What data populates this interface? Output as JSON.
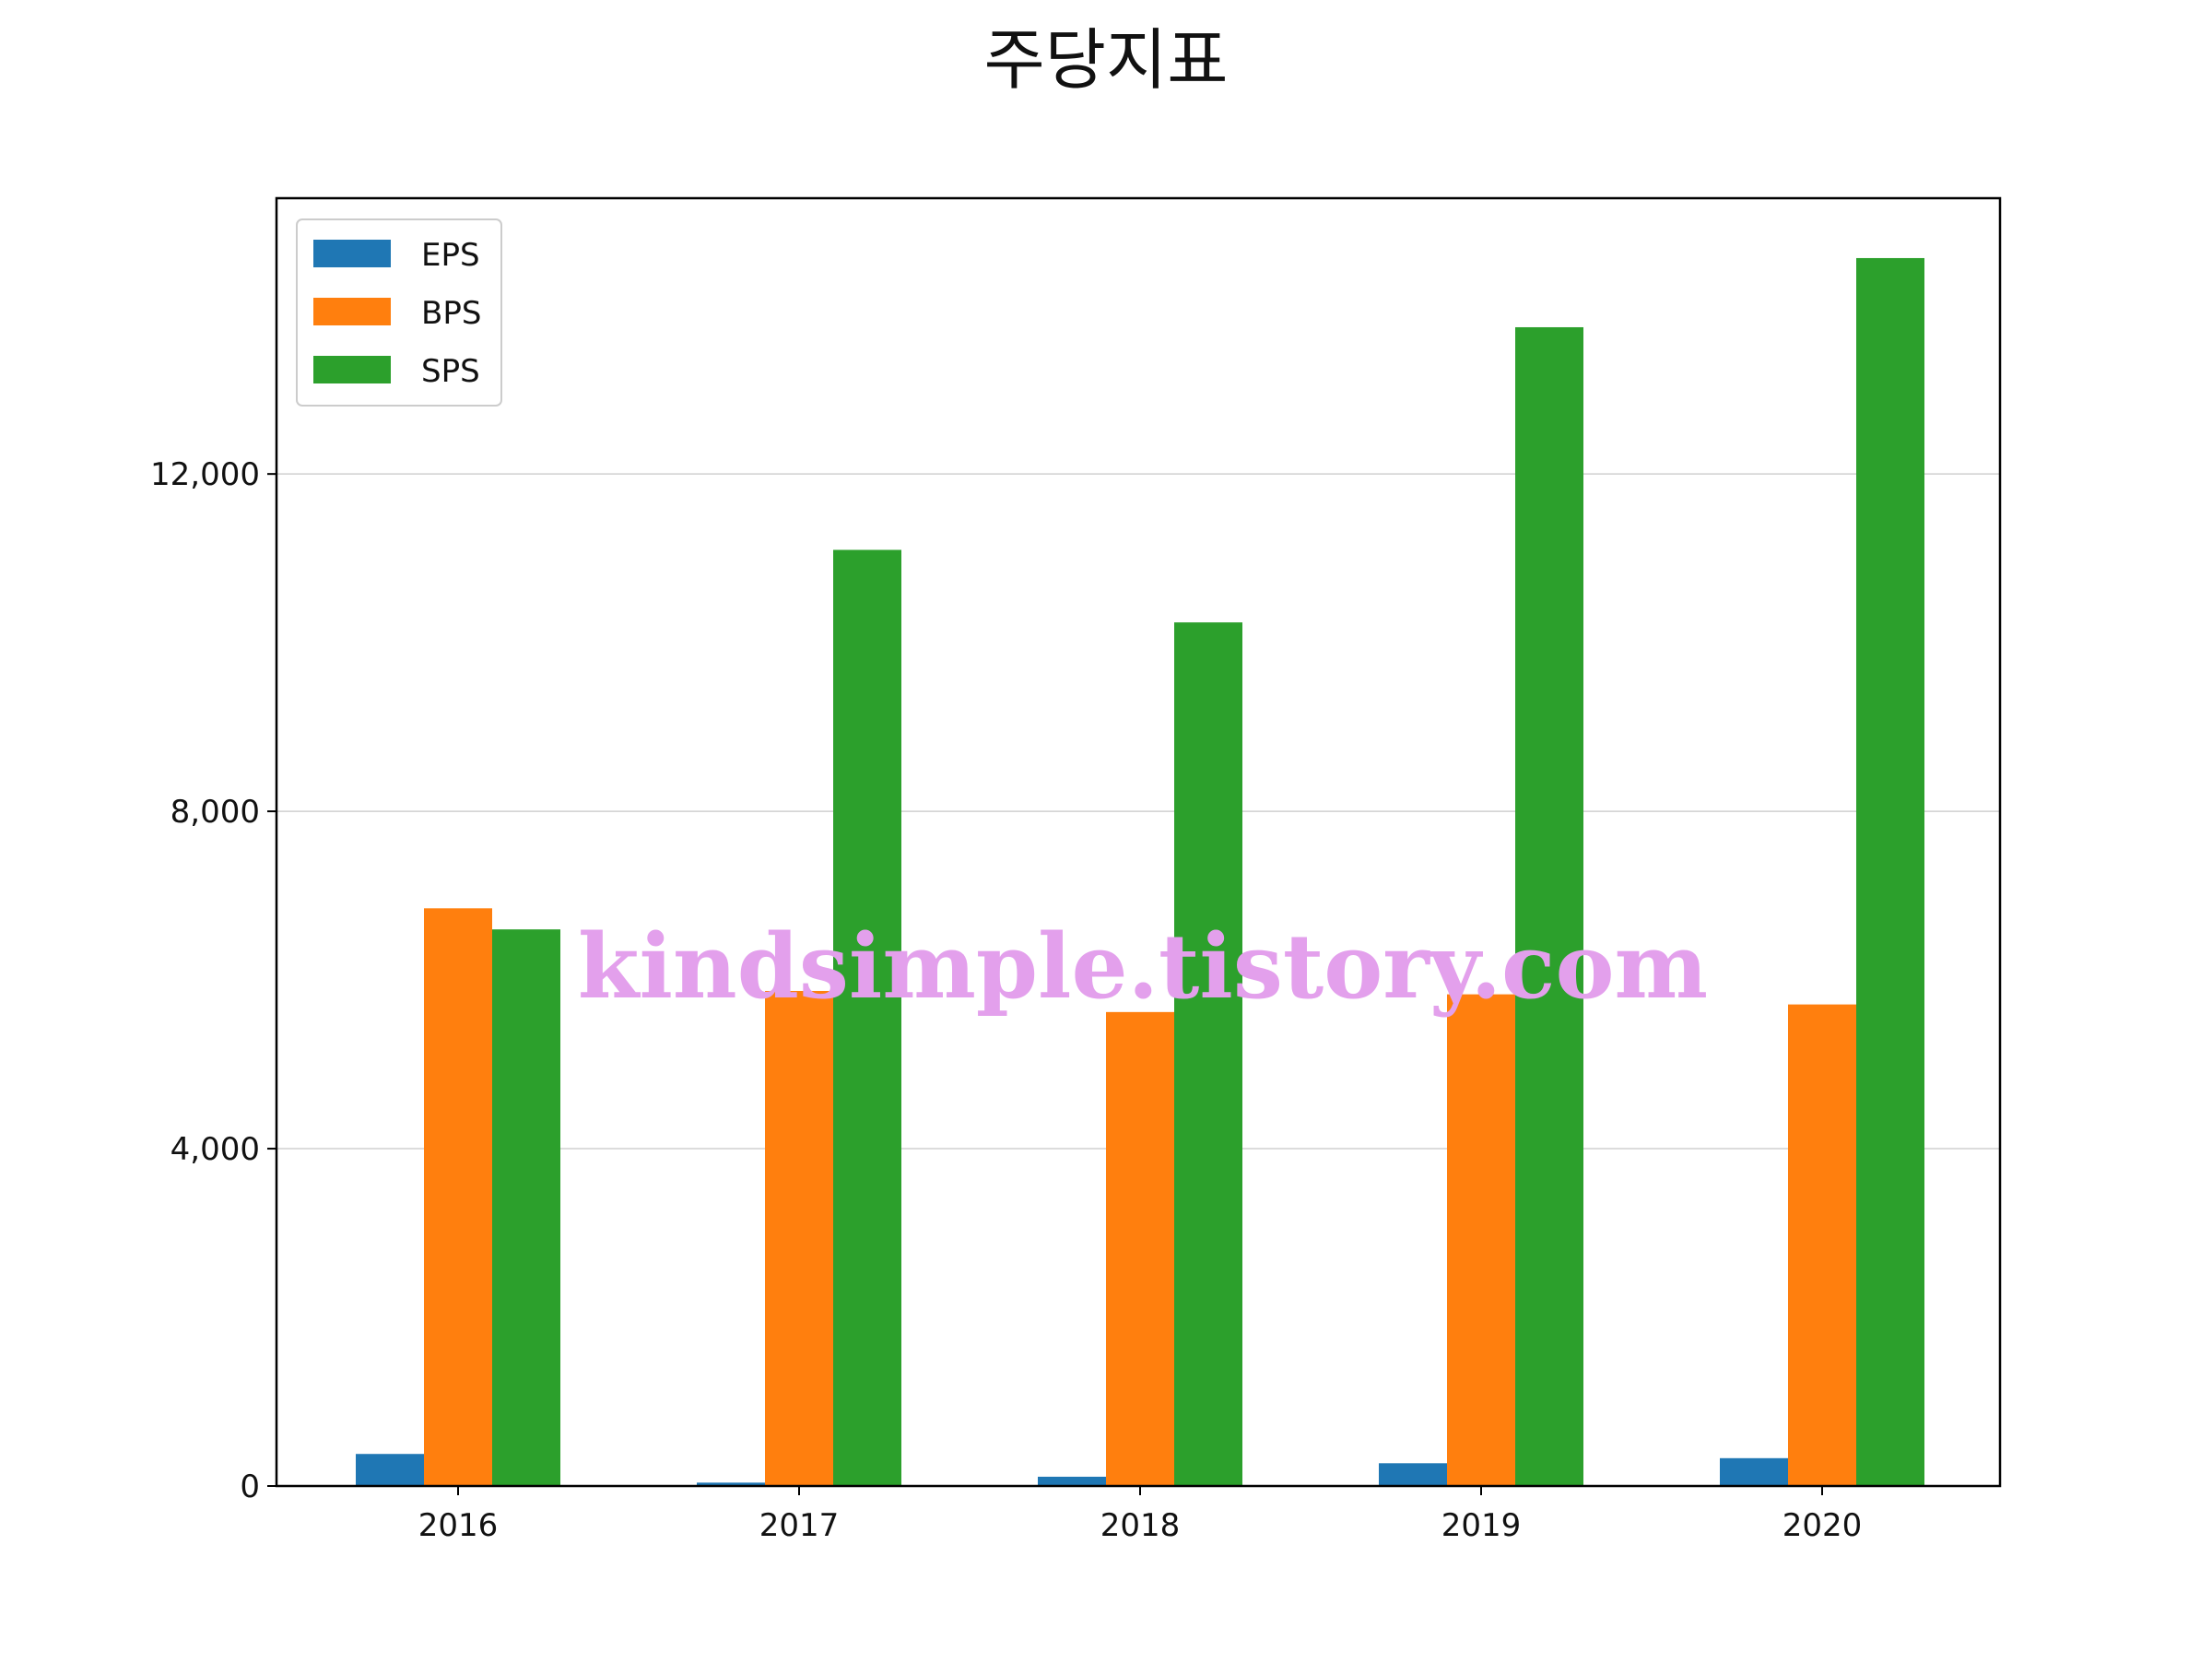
{
  "chart_data": {
    "type": "bar",
    "title": "주당지표",
    "xlabel": "",
    "ylabel": "",
    "categories": [
      "2016",
      "2017",
      "2018",
      "2019",
      "2020"
    ],
    "series": [
      {
        "name": "EPS",
        "color": "#1f77b4",
        "values": [
          380,
          40,
          110,
          270,
          330
        ]
      },
      {
        "name": "BPS",
        "color": "#ff7f0e",
        "values": [
          6850,
          5870,
          5620,
          5830,
          5710
        ]
      },
      {
        "name": "SPS",
        "color": "#2ca02c",
        "values": [
          6600,
          11100,
          10240,
          13740,
          14560
        ]
      }
    ],
    "ylim": [
      0,
      15270
    ],
    "yticks": [
      0,
      4000,
      8000,
      12000
    ],
    "ytick_labels": [
      "0",
      "4,000",
      "8,000",
      "12,000"
    ],
    "grid": "horizontal",
    "legend_position": "top-left",
    "watermark": "kindsimple.tistory.com"
  }
}
